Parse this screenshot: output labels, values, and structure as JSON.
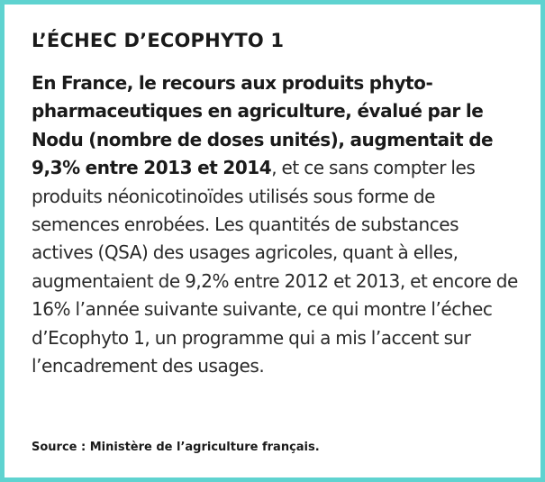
{
  "box": {
    "title": "L’ÉCHEC D’ECOPHYTO 1",
    "lead": "En France, le recours aux produits phyto-pharmaceutiques en agriculture, évalué par le Nodu (nombre de doses unités), augmentait de 9,3% entre 2013 et 2014",
    "text": ", et ce sans compter les produits néonicotinoïdes utilisés sous forme de semences enrobées. Les quantités de substances actives (QSA) des usages agricoles, quant à elles, augmentaient de 9,2% entre 2012 et 2013, et encore de 16% l’année suivante suivante, ce qui montre l’échec d’Ecophyto 1, un programme qui a mis l’accent sur l’encadrement des usages.",
    "source": "Source : Ministère de l’agriculture français.",
    "border_color": "#5fd3d0"
  }
}
